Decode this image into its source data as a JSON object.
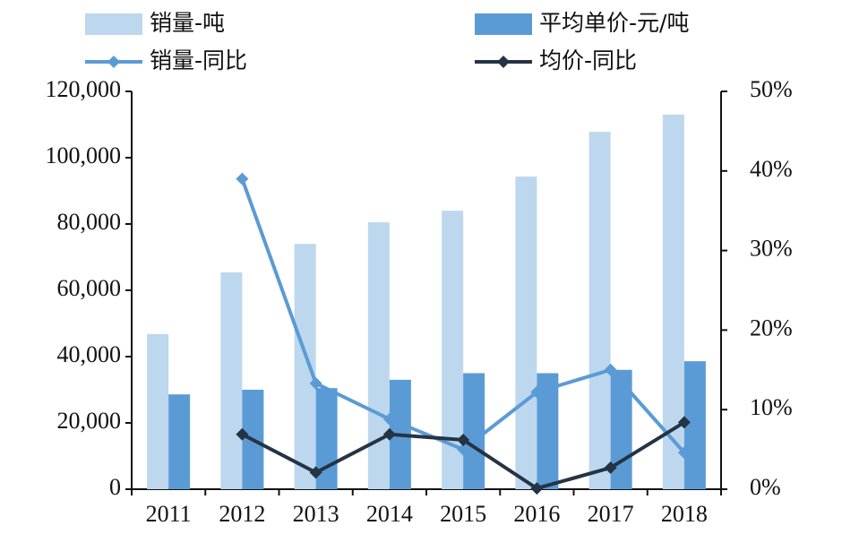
{
  "chart_data": {
    "type": "bar",
    "categories": [
      "2011",
      "2012",
      "2013",
      "2014",
      "2015",
      "2016",
      "2017",
      "2018"
    ],
    "series": [
      {
        "name": "销量-吨",
        "type": "bar",
        "color": "#bdd7ee",
        "values": [
          46800,
          65400,
          74000,
          80500,
          84000,
          94300,
          107800,
          113000
        ]
      },
      {
        "name": "平均单价-元/吨",
        "type": "bar",
        "color": "#5b9bd5",
        "values": [
          28600,
          30000,
          30500,
          33000,
          35000,
          35000,
          36000,
          38600
        ]
      },
      {
        "name": "销量-同比",
        "type": "line",
        "axis": "y2",
        "color": "#5b9bd5",
        "values": [
          null,
          39,
          13.3,
          8.8,
          5,
          12.2,
          15,
          4.6
        ]
      },
      {
        "name": "均价-同比",
        "type": "line",
        "axis": "y2",
        "color": "#253444",
        "values": [
          null,
          6.9,
          2.1,
          6.9,
          6.2,
          0.1,
          2.7,
          8.4
        ]
      }
    ],
    "ylim": [
      0,
      120000
    ],
    "yticks": [
      {
        "value": 0,
        "label": "0"
      },
      {
        "value": 20000,
        "label": "20,000"
      },
      {
        "value": 40000,
        "label": "40,000"
      },
      {
        "value": 60000,
        "label": "60,000"
      },
      {
        "value": 80000,
        "label": "80,000"
      },
      {
        "value": 100000,
        "label": "100,000"
      },
      {
        "value": 120000,
        "label": "120,000"
      }
    ],
    "y2lim": [
      0,
      50
    ],
    "y2ticks": [
      {
        "value": 0,
        "label": "0%"
      },
      {
        "value": 10,
        "label": "10%"
      },
      {
        "value": 20,
        "label": "20%"
      },
      {
        "value": 30,
        "label": "30%"
      },
      {
        "value": 40,
        "label": "40%"
      },
      {
        "value": 50,
        "label": "50%"
      }
    ],
    "legend": "top"
  }
}
